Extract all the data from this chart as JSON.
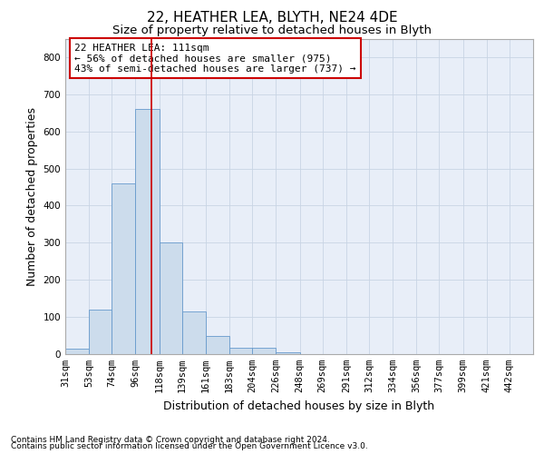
{
  "title": "22, HEATHER LEA, BLYTH, NE24 4DE",
  "subtitle": "Size of property relative to detached houses in Blyth",
  "xlabel": "Distribution of detached houses by size in Blyth",
  "ylabel": "Number of detached properties",
  "footnote1": "Contains HM Land Registry data © Crown copyright and database right 2024.",
  "footnote2": "Contains public sector information licensed under the Open Government Licence v3.0.",
  "annotation_line1": "22 HEATHER LEA: 111sqm",
  "annotation_line2": "← 56% of detached houses are smaller (975)",
  "annotation_line3": "43% of semi-detached houses are larger (737) →",
  "property_size": 111,
  "bar_color": "#ccdcec",
  "bar_edge_color": "#6699cc",
  "vline_color": "#cc0000",
  "annotation_box_color": "#cc0000",
  "grid_color": "#c8d4e4",
  "background_color": "#e8eef8",
  "bins": [
    31,
    53,
    74,
    96,
    118,
    139,
    161,
    183,
    204,
    226,
    248,
    269,
    291,
    312,
    334,
    356,
    377,
    399,
    421,
    442,
    464
  ],
  "counts": [
    15,
    120,
    460,
    660,
    300,
    115,
    50,
    18,
    18,
    5,
    0,
    0,
    0,
    0,
    0,
    0,
    0,
    0,
    0,
    0
  ],
  "ylim": [
    0,
    850
  ],
  "yticks": [
    0,
    100,
    200,
    300,
    400,
    500,
    600,
    700,
    800
  ],
  "title_fontsize": 11,
  "subtitle_fontsize": 9.5,
  "axis_label_fontsize": 9,
  "tick_fontsize": 7.5,
  "annotation_fontsize": 8,
  "footnote_fontsize": 6.5
}
